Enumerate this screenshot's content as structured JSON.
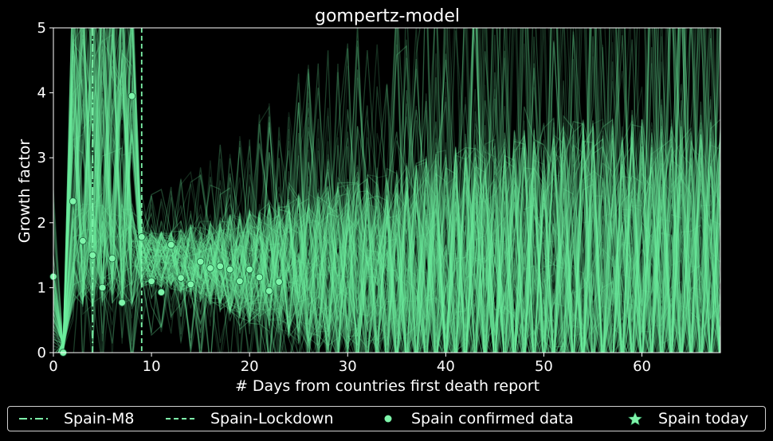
{
  "colors": {
    "background": "#000000",
    "trace": "#6ef0a0",
    "marker": "#7ef5aa",
    "marker_edge": "#1a5e38",
    "axes": "#ffffff"
  },
  "chart_data": {
    "type": "line",
    "title": "gompertz-model",
    "xlabel": "# Days from countries first death report",
    "ylabel": "Growth factor",
    "xlim": [
      0,
      68
    ],
    "ylim": [
      0,
      5
    ],
    "xticks": [
      "0",
      "10",
      "20",
      "30",
      "40",
      "50",
      "60"
    ],
    "yticks": [
      "0",
      "1",
      "2",
      "3",
      "4",
      "5"
    ],
    "grid": false,
    "legend_placement": "bottom-outside",
    "vlines": [
      {
        "name": "Spain-M8",
        "x": 4,
        "style": "dashdot"
      },
      {
        "name": "Spain-Lockdown",
        "x": 9,
        "style": "dashed"
      }
    ],
    "series": [
      {
        "name": "Spain confirmed data",
        "kind": "scatter",
        "x": [
          0,
          1,
          2,
          3,
          4,
          5,
          6,
          7,
          8,
          9,
          10,
          11,
          12,
          13,
          14,
          15,
          16,
          17,
          18,
          19,
          20,
          21,
          22,
          23
        ],
        "y": [
          1.17,
          0.0,
          2.33,
          1.72,
          1.5,
          1.0,
          1.45,
          0.77,
          3.95,
          1.78,
          1.1,
          0.93,
          1.66,
          1.15,
          1.05,
          1.4,
          1.3,
          1.33,
          1.28,
          1.1,
          1.28,
          1.16,
          0.95,
          1.09
        ]
      },
      {
        "name": "Spain today",
        "kind": "star"
      }
    ],
    "simulation_traces": "many overlapping semi-transparent gompertz-model growth factor simulations spanning x 0–68"
  }
}
